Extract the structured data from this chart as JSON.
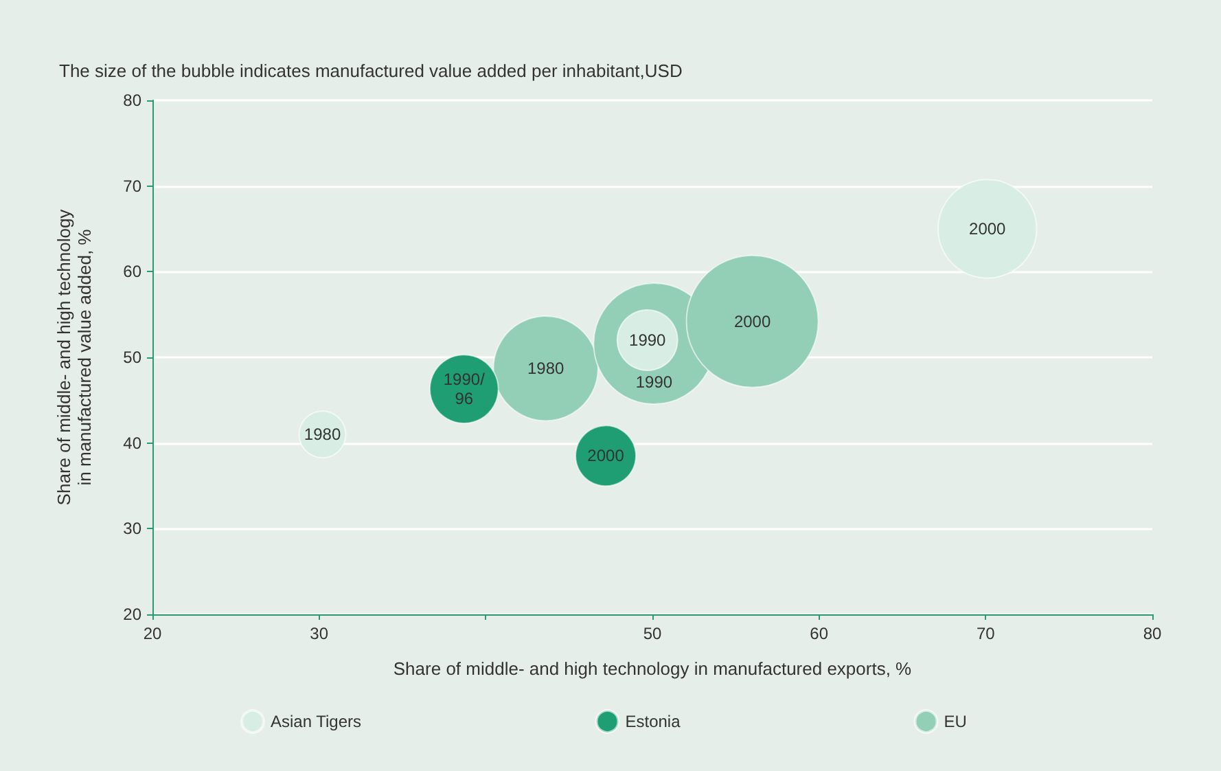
{
  "chart_data": {
    "type": "bubble",
    "subtitle": "The size of the bubble indicates manufactured value added per inhabitant,USD",
    "xlabel": "Share of middle- and high technology in manufactured exports, %",
    "ylabel": "Share of middle- and high technology\nin manufactured value added, %",
    "xlim": [
      20,
      80
    ],
    "xticks": [
      20,
      30,
      {
        "value": 40,
        "label": null
      },
      50,
      60,
      70,
      80
    ],
    "ylim": [
      20,
      80
    ],
    "yticks": [
      20,
      30,
      40,
      50,
      60,
      70,
      80
    ],
    "grid": "y",
    "legend": "bottom",
    "series": [
      {
        "name": "EU",
        "color": "#93cfb6",
        "x": [
          43.6,
          50.1,
          56.0
        ],
        "values": [
          48.7,
          51.6,
          54.2
        ],
        "sizes": [
          0.63,
          0.84,
          1
        ]
      },
      {
        "name": "Asian Tigers",
        "color": "#d8eee5",
        "x": [
          30.2,
          49.7,
          70.1
        ],
        "values": [
          41,
          52,
          65
        ],
        "sizes": [
          0.125,
          0.21,
          0.56
        ]
      },
      {
        "name": "Estonia",
        "color": "#1f9e74",
        "x": [
          38.7,
          47.2
        ],
        "values": [
          46.3,
          38.5
        ],
        "sizes": [
          0.27,
          0.21
        ]
      }
    ],
    "annotations": [
      {
        "text": "1980",
        "x": 43.6,
        "y": 48.7
      },
      {
        "text": "1990",
        "x": 50.1,
        "y": 51.6
      },
      {
        "text": "2000",
        "x": 56.0,
        "y": 54.2
      },
      {
        "text": "1980",
        "x": 30.2,
        "y": 41
      },
      {
        "text": "1990",
        "x": 49.7,
        "y": 52
      },
      {
        "text": "2000",
        "x": 70.1,
        "y": 65
      },
      {
        "text": "1990/96",
        "x": 38.7,
        "y": 46.3
      },
      {
        "text": "2000",
        "x": 47.2,
        "y": 38.5
      }
    ]
  }
}
